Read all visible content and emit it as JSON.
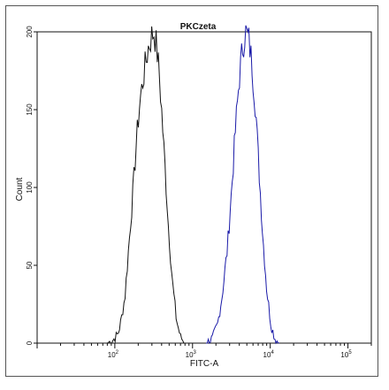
{
  "chart_data": {
    "type": "line",
    "title": "PKCzeta",
    "xlabel": "FITC-A",
    "ylabel": "Count",
    "xscale": "log",
    "xlim": [
      10,
      200000
    ],
    "ylim": [
      0,
      200
    ],
    "yticks": [
      0,
      50,
      100,
      150,
      200
    ],
    "xticks": [
      {
        "value": 100,
        "base": "10",
        "exp": "2"
      },
      {
        "value": 1000,
        "base": "10",
        "exp": "3"
      },
      {
        "value": 10000,
        "base": "10",
        "exp": "4"
      },
      {
        "value": 100000,
        "base": "10",
        "exp": "5"
      }
    ],
    "grid": false,
    "legend": "none",
    "series": [
      {
        "color": "#111111",
        "points": [
          [
            80,
            0
          ],
          [
            95,
            2
          ],
          [
            110,
            6
          ],
          [
            120,
            14
          ],
          [
            135,
            30
          ],
          [
            150,
            60
          ],
          [
            170,
            95
          ],
          [
            190,
            130
          ],
          [
            210,
            155
          ],
          [
            240,
            175
          ],
          [
            270,
            190
          ],
          [
            300,
            198
          ],
          [
            320,
            200
          ],
          [
            345,
            190
          ],
          [
            370,
            175
          ],
          [
            400,
            150
          ],
          [
            440,
            115
          ],
          [
            490,
            75
          ],
          [
            550,
            40
          ],
          [
            620,
            15
          ],
          [
            700,
            4
          ],
          [
            800,
            0
          ]
        ]
      },
      {
        "color": "#1a1aa8",
        "points": [
          [
            1500,
            0
          ],
          [
            1800,
            3
          ],
          [
            2100,
            12
          ],
          [
            2400,
            30
          ],
          [
            2800,
            60
          ],
          [
            3200,
            100
          ],
          [
            3600,
            140
          ],
          [
            4000,
            170
          ],
          [
            4400,
            190
          ],
          [
            4800,
            200
          ],
          [
            5300,
            195
          ],
          [
            5800,
            180
          ],
          [
            6500,
            150
          ],
          [
            7200,
            110
          ],
          [
            8000,
            70
          ],
          [
            9000,
            35
          ],
          [
            10200,
            12
          ],
          [
            11500,
            3
          ],
          [
            13000,
            0
          ]
        ]
      }
    ]
  }
}
